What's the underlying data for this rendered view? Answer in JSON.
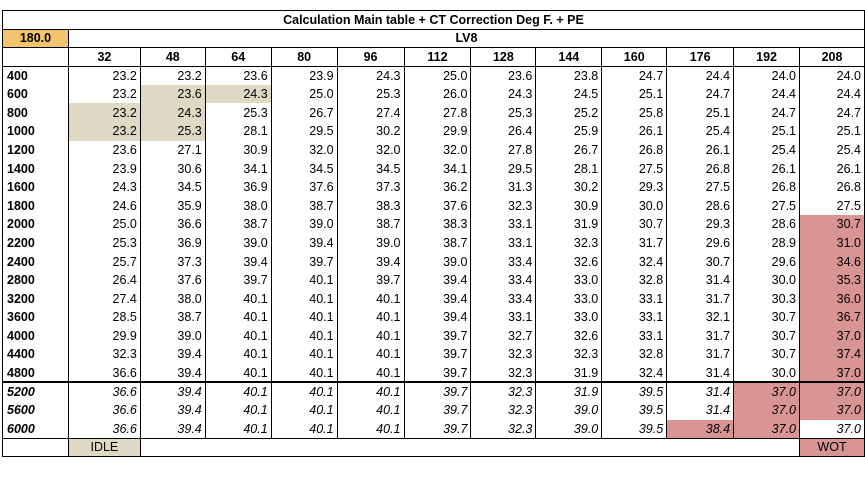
{
  "title": "Calculation Main table + CT Correction Deg F. + PE",
  "corner_value": "180.0",
  "group_label": "LV8",
  "columns": [
    "32",
    "48",
    "64",
    "80",
    "96",
    "112",
    "128",
    "144",
    "160",
    "176",
    "192",
    "208"
  ],
  "rows": [
    {
      "label": "400",
      "values": [
        "23.2",
        "23.2",
        "23.6",
        "23.9",
        "24.3",
        "25.0",
        "23.6",
        "23.8",
        "24.7",
        "24.4",
        "24.0",
        "24.0"
      ]
    },
    {
      "label": "600",
      "values": [
        "23.2",
        "23.6",
        "24.3",
        "25.0",
        "25.3",
        "26.0",
        "24.3",
        "24.5",
        "25.1",
        "24.7",
        "24.4",
        "24.4"
      ]
    },
    {
      "label": "800",
      "values": [
        "23.2",
        "24.3",
        "25.3",
        "26.7",
        "27.4",
        "27.8",
        "25.3",
        "25.2",
        "25.8",
        "25.1",
        "24.7",
        "24.7"
      ]
    },
    {
      "label": "1000",
      "values": [
        "23.2",
        "25.3",
        "28.1",
        "29.5",
        "30.2",
        "29.9",
        "26.4",
        "25.9",
        "26.1",
        "25.4",
        "25.1",
        "25.1"
      ]
    },
    {
      "label": "1200",
      "values": [
        "23.6",
        "27.1",
        "30.9",
        "32.0",
        "32.0",
        "32.0",
        "27.8",
        "26.7",
        "26.8",
        "26.1",
        "25.4",
        "25.4"
      ]
    },
    {
      "label": "1400",
      "values": [
        "23.9",
        "30.6",
        "34.1",
        "34.5",
        "34.5",
        "34.1",
        "29.5",
        "28.1",
        "27.5",
        "26.8",
        "26.1",
        "26.1"
      ]
    },
    {
      "label": "1600",
      "values": [
        "24.3",
        "34.5",
        "36.9",
        "37.6",
        "37.3",
        "36.2",
        "31.3",
        "30.2",
        "29.3",
        "27.5",
        "26.8",
        "26.8"
      ]
    },
    {
      "label": "1800",
      "values": [
        "24.6",
        "35.9",
        "38.0",
        "38.7",
        "38.3",
        "37.6",
        "32.3",
        "30.9",
        "30.0",
        "28.6",
        "27.5",
        "27.5"
      ]
    },
    {
      "label": "2000",
      "values": [
        "25.0",
        "36.6",
        "38.7",
        "39.0",
        "38.7",
        "38.3",
        "33.1",
        "31.9",
        "30.7",
        "29.3",
        "28.6",
        "30.7"
      ]
    },
    {
      "label": "2200",
      "values": [
        "25.3",
        "36.9",
        "39.0",
        "39.4",
        "39.0",
        "38.7",
        "33.1",
        "32.3",
        "31.7",
        "29.6",
        "28.9",
        "31.0"
      ]
    },
    {
      "label": "2400",
      "values": [
        "25.7",
        "37.3",
        "39.4",
        "39.7",
        "39.4",
        "39.0",
        "33.4",
        "32.6",
        "32.4",
        "30.7",
        "29.6",
        "34.6"
      ]
    },
    {
      "label": "2800",
      "values": [
        "26.4",
        "37.6",
        "39.7",
        "40.1",
        "39.7",
        "39.4",
        "33.4",
        "33.0",
        "32.8",
        "31.4",
        "30.0",
        "35.3"
      ]
    },
    {
      "label": "3200",
      "values": [
        "27.4",
        "38.0",
        "40.1",
        "40.1",
        "40.1",
        "39.4",
        "33.4",
        "33.0",
        "33.1",
        "31.7",
        "30.3",
        "36.0"
      ]
    },
    {
      "label": "3600",
      "values": [
        "28.5",
        "38.7",
        "40.1",
        "40.1",
        "40.1",
        "39.4",
        "33.1",
        "33.0",
        "33.1",
        "32.1",
        "30.7",
        "36.7"
      ]
    },
    {
      "label": "4000",
      "values": [
        "29.9",
        "39.0",
        "40.1",
        "40.1",
        "40.1",
        "39.7",
        "32.7",
        "32.6",
        "33.1",
        "31.7",
        "30.7",
        "37.0"
      ]
    },
    {
      "label": "4400",
      "values": [
        "32.3",
        "39.4",
        "40.1",
        "40.1",
        "40.1",
        "39.7",
        "32.3",
        "32.3",
        "32.8",
        "31.7",
        "30.7",
        "37.4"
      ]
    },
    {
      "label": "4800",
      "values": [
        "36.6",
        "39.4",
        "40.1",
        "40.1",
        "40.1",
        "39.7",
        "32.3",
        "31.9",
        "32.4",
        "31.4",
        "30.0",
        "37.0"
      ]
    },
    {
      "label": "5200",
      "values": [
        "36.6",
        "39.4",
        "40.1",
        "40.1",
        "40.1",
        "39.7",
        "32.3",
        "31.9",
        "39.5",
        "31.4",
        "37.0",
        "37.0"
      ]
    },
    {
      "label": "5600",
      "values": [
        "36.6",
        "39.4",
        "40.1",
        "40.1",
        "40.1",
        "39.7",
        "32.3",
        "39.0",
        "39.5",
        "31.4",
        "37.0",
        "37.0"
      ]
    },
    {
      "label": "6000",
      "values": [
        "36.6",
        "39.4",
        "40.1",
        "40.1",
        "40.1",
        "39.7",
        "32.3",
        "39.0",
        "39.5",
        "38.4",
        "37.0",
        "37.0"
      ]
    }
  ],
  "footer": {
    "idle_label": "IDLE",
    "wot_label": "WOT"
  },
  "colors": {
    "corner": "#F2C46D",
    "idle": "#DDD9C4",
    "wot": "#D99594",
    "white": "#FFFFFF"
  }
}
